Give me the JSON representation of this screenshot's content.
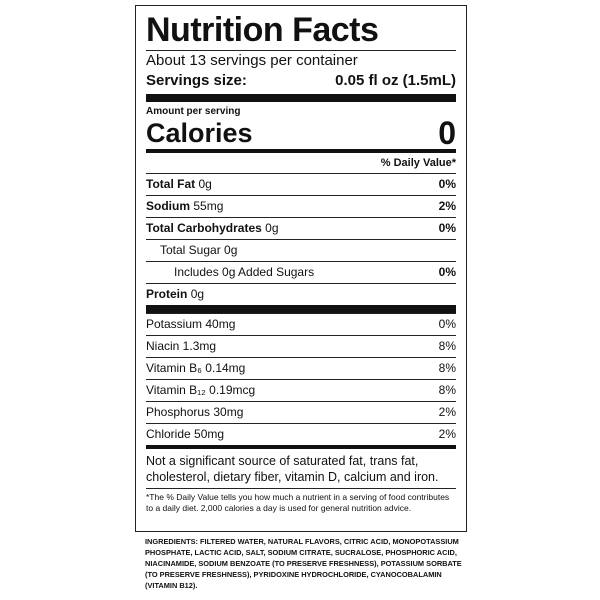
{
  "title": "Nutrition Facts",
  "servings_per_container": "About 13 servings per container",
  "serving_size": {
    "label": "Servings size:",
    "value": "0.05 fl oz (1.5mL)"
  },
  "amount_per_serving": "Amount per serving",
  "calories": {
    "label": "Calories",
    "value": "0"
  },
  "daily_value_header": "% Daily Value*",
  "nutrients": [
    {
      "name": "Total Fat",
      "amount": "0g",
      "dv": "0%"
    },
    {
      "name": "Sodium",
      "amount": "55mg",
      "dv": "2%"
    },
    {
      "name": "Total Carbohydrates",
      "amount": "0g",
      "dv": "0%"
    },
    {
      "name": "Total Sugar 0g"
    },
    {
      "name": "Includes 0g Added Sugars",
      "dv": "0%"
    },
    {
      "name": "Protein",
      "amount": "0g"
    }
  ],
  "micronutrients": [
    {
      "name": "Potassium 40mg",
      "dv": "0%"
    },
    {
      "name": "Niacin 1.3mg",
      "dv": "8%"
    },
    {
      "name": "Vitamin B₆ 0.14mg",
      "dv": "8%"
    },
    {
      "name": "Vitamin B₁₂ 0.19mcg",
      "dv": "8%"
    },
    {
      "name": "Phosphorus 30mg",
      "dv": "2%"
    },
    {
      "name": "Chloride 50mg",
      "dv": "2%"
    }
  ],
  "not_significant": "Not a significant source of saturated fat, trans fat, cholesterol, dietary fiber, vitamin D, calcium and iron.",
  "footnote": "*The % Daily Value tells you how much a nutrient in a serving of food contributes to a daily diet. 2,000 calories a day is used for general nutrition advice.",
  "ingredients": "INGREDIENTS: FILTERED WATER, NATURAL FLAVORS, CITRIC ACID, MONOPOTASSIUM PHOSPHATE, LACTIC ACID, SALT, SODIUM CITRATE, SUCRALOSE, PHOSPHORIC ACID, NIACINAMIDE, SODIUM BENZOATE (TO PRESERVE FRESHNESS), POTASSIUM SORBATE (TO PRESERVE FRESHNESS), PYRIDOXINE HYDROCHLORIDE, CYANOCOBALAMIN (VITAMIN B12)."
}
